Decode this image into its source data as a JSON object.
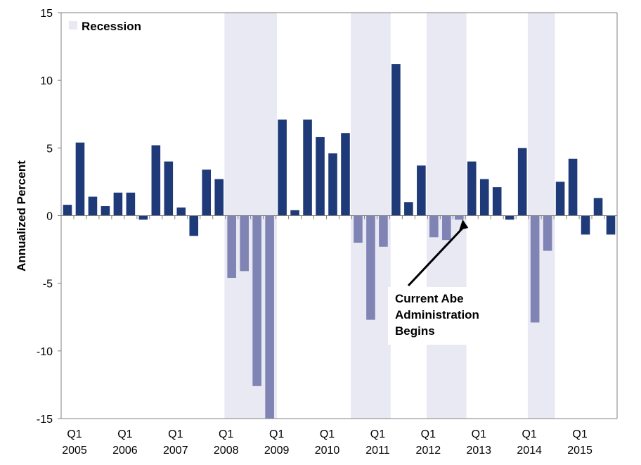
{
  "chart_data": {
    "type": "bar",
    "ylabel": "Annualized Percent",
    "ylim": [
      -15,
      15
    ],
    "yticks": [
      15,
      10,
      5,
      0,
      -5,
      -10,
      -15
    ],
    "x_tick_labels": [
      {
        "q": "Q1",
        "year": "2005",
        "index": 0
      },
      {
        "q": "Q1",
        "year": "2006",
        "index": 4
      },
      {
        "q": "Q1",
        "year": "2007",
        "index": 8
      },
      {
        "q": "Q1",
        "year": "2008",
        "index": 12
      },
      {
        "q": "Q1",
        "year": "2009",
        "index": 16
      },
      {
        "q": "Q1",
        "year": "2010",
        "index": 20
      },
      {
        "q": "Q1",
        "year": "2011",
        "index": 24
      },
      {
        "q": "Q1",
        "year": "2012",
        "index": 28
      },
      {
        "q": "Q1",
        "year": "2013",
        "index": 32
      },
      {
        "q": "Q1",
        "year": "2014",
        "index": 36
      },
      {
        "q": "Q1",
        "year": "2015",
        "index": 40
      }
    ],
    "quarters": [
      "2005Q1",
      "2005Q2",
      "2005Q3",
      "2005Q4",
      "2006Q1",
      "2006Q2",
      "2006Q3",
      "2006Q4",
      "2007Q1",
      "2007Q2",
      "2007Q3",
      "2007Q4",
      "2008Q1",
      "2008Q2",
      "2008Q3",
      "2008Q4",
      "2009Q1",
      "2009Q2",
      "2009Q3",
      "2009Q4",
      "2010Q1",
      "2010Q2",
      "2010Q3",
      "2010Q4",
      "2011Q1",
      "2011Q2",
      "2011Q3",
      "2011Q4",
      "2012Q1",
      "2012Q2",
      "2012Q3",
      "2012Q4",
      "2013Q1",
      "2013Q2",
      "2013Q3",
      "2013Q4",
      "2014Q1",
      "2014Q2",
      "2014Q3",
      "2014Q4",
      "2015Q1",
      "2015Q2",
      "2015Q3",
      "2015Q4"
    ],
    "values": [
      0.8,
      5.4,
      1.4,
      0.7,
      1.7,
      1.7,
      -0.3,
      5.2,
      4.0,
      0.6,
      -1.5,
      3.4,
      2.7,
      -4.6,
      -4.1,
      -12.6,
      -15.3,
      7.1,
      0.4,
      7.1,
      5.8,
      4.6,
      6.1,
      -2.0,
      -7.7,
      -2.3,
      11.2,
      1.0,
      3.7,
      -1.6,
      -1.8,
      -0.3,
      4.0,
      2.7,
      2.1,
      -0.3,
      5.0,
      -7.9,
      -2.6,
      2.5,
      4.2,
      -1.4,
      1.3,
      -1.4
    ],
    "recession_flags": [
      false,
      false,
      false,
      false,
      false,
      false,
      false,
      false,
      false,
      false,
      false,
      false,
      false,
      true,
      true,
      true,
      true,
      false,
      false,
      false,
      false,
      false,
      false,
      true,
      true,
      true,
      false,
      false,
      false,
      true,
      true,
      true,
      false,
      false,
      false,
      false,
      false,
      true,
      true,
      false,
      false,
      false,
      false,
      false
    ],
    "recession_periods": [
      {
        "start": "2008Q2",
        "end": "2009Q1"
      },
      {
        "start": "2010Q4",
        "end": "2011Q2"
      },
      {
        "start": "2012Q2",
        "end": "2012Q4"
      },
      {
        "start": "2014Q2",
        "end": "2014Q3"
      }
    ],
    "legend": {
      "label": "Recession",
      "position": "top-left"
    },
    "annotation": {
      "lines": [
        "Current Abe",
        "Administration",
        "Begins"
      ],
      "points_to": "2012Q4"
    },
    "grid": false
  },
  "colors": {
    "bar": "#1f3a78",
    "recession_bar": "#7f84b4",
    "recession_shade": "#e8e9f3",
    "axis": "#808080",
    "annotation_box": "#ffffff"
  }
}
